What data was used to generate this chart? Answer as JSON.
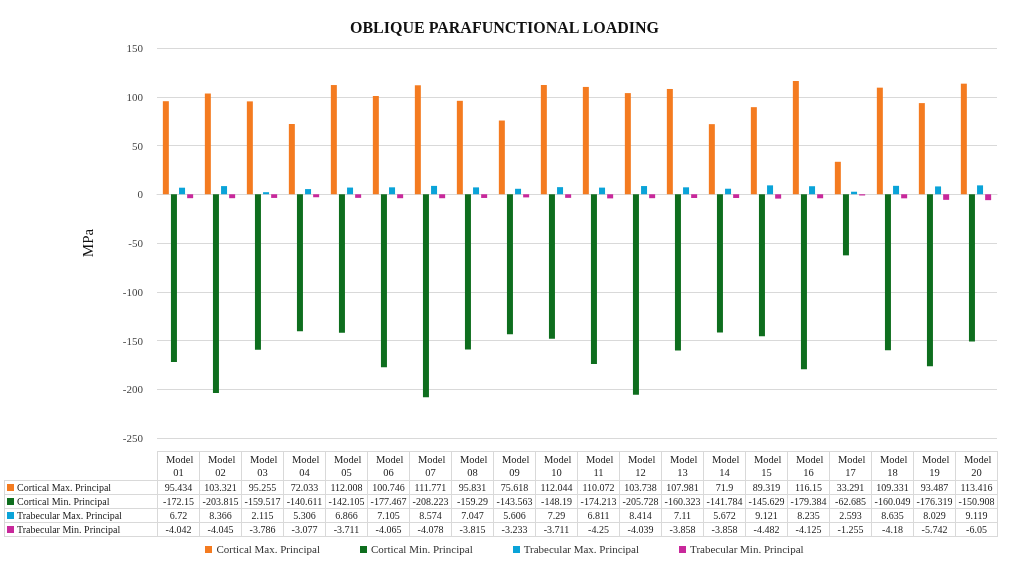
{
  "chart_data": {
    "type": "bar",
    "title": "OBLIQUE PARAFUNCTIONAL LOADING",
    "ylabel": "MPa",
    "categories": [
      "Model 01",
      "Model 02",
      "Model 03",
      "Model 04",
      "Model 05",
      "Model 06",
      "Model 07",
      "Model 08",
      "Model 09",
      "Model 10",
      "Model 11",
      "Model 12",
      "Model 13",
      "Model 14",
      "Model 15",
      "Model 16",
      "Model 17",
      "Model 18",
      "Model 19",
      "Model 20"
    ],
    "series": [
      {
        "name": "Cortical Max. Principal",
        "color": "#f47b20",
        "values": [
          95.434,
          103.321,
          95.255,
          72.033,
          112.008,
          100.746,
          111.771,
          95.831,
          75.618,
          112.044,
          110.072,
          103.738,
          107.981,
          71.9,
          89.319,
          116.15,
          33.291,
          109.331,
          93.487,
          113.416
        ]
      },
      {
        "name": "Cortical Min. Principal",
        "color": "#0e6e1e",
        "values": [
          -172.15,
          -203.815,
          -159.517,
          -140.611,
          -142.105,
          -177.467,
          -208.223,
          -159.29,
          -143.563,
          -148.19,
          -174.213,
          -205.728,
          -160.323,
          -141.784,
          -145.629,
          -179.384,
          -62.685,
          -160.049,
          -176.319,
          -150.908
        ]
      },
      {
        "name": "Trabecular Max. Principal",
        "color": "#0aa3d8",
        "values": [
          6.72,
          8.366,
          2.115,
          5.306,
          6.866,
          7.105,
          8.574,
          7.047,
          5.606,
          7.29,
          6.811,
          8.414,
          7.11,
          5.672,
          9.121,
          8.235,
          2.593,
          8.635,
          8.029,
          9.119
        ]
      },
      {
        "name": "Trabecular Min. Principal",
        "color": "#c8289b",
        "values": [
          -4.042,
          -4.045,
          -3.786,
          -3.077,
          -3.711,
          -4.065,
          -4.078,
          -3.815,
          -3.233,
          -3.711,
          -4.25,
          -4.039,
          -3.858,
          -3.858,
          -4.482,
          -4.125,
          -1.255,
          -4.18,
          -5.742,
          -6.05
        ]
      }
    ],
    "ylim": [
      -250,
      150
    ],
    "yticks": [
      -250,
      -200,
      -150,
      -100,
      -50,
      0,
      50,
      100,
      150
    ],
    "grid": "y",
    "legend": "bottom",
    "data_labels": true
  }
}
